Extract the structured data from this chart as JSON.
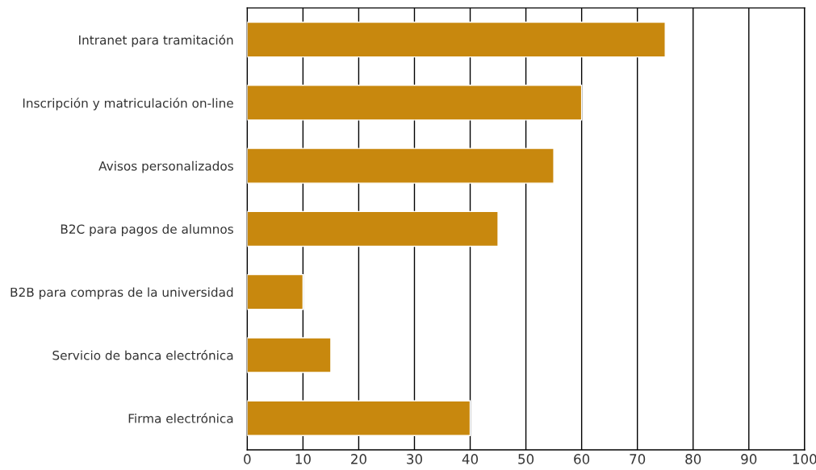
{
  "chart_data": {
    "type": "bar",
    "orientation": "horizontal",
    "categories": [
      "Intranet para tramitación",
      "Inscripción y matriculación on-line",
      "Avisos personalizados",
      "B2C para pagos de alumnos",
      "B2B para compras de la universidad",
      "Servicio de banca electrónica",
      "Firma electrónica"
    ],
    "values": [
      75,
      60,
      55,
      45,
      10,
      15,
      40
    ],
    "color": "#c8880e",
    "xlim": [
      0,
      100
    ],
    "xticks": [
      0,
      10,
      20,
      30,
      40,
      50,
      60,
      70,
      80,
      90,
      100
    ],
    "grid": "x",
    "legend": false
  }
}
